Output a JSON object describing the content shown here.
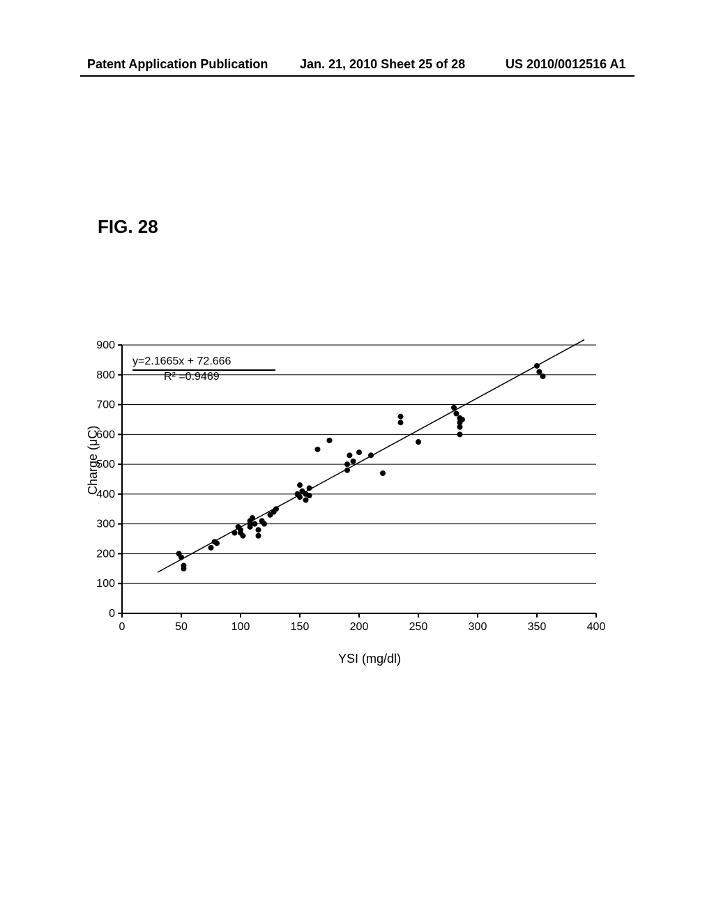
{
  "header": {
    "left": "Patent Application Publication",
    "center": "Jan. 21, 2010  Sheet 25 of 28",
    "right": "US 2010/0012516 A1"
  },
  "figure_label": "FIG.  28",
  "chart": {
    "type": "scatter",
    "xlabel": "YSI  (mg/dl)",
    "ylabel": "Charge  (μC)",
    "xlim": [
      0,
      400
    ],
    "ylim": [
      0,
      900
    ],
    "xtick_step": 50,
    "ytick_step": 100,
    "background_color": "#ffffff",
    "grid_color": "#000000",
    "axis_color": "#000000",
    "marker_color": "#000000",
    "marker_size": 4,
    "line_width": 1.5,
    "label_fontsize": 18,
    "tick_fontsize": 16,
    "equation": "y=2.1665x  +  72.666",
    "rsquared": "R² =0.9469",
    "fit_line": {
      "slope": 2.1665,
      "intercept": 72.666,
      "x0": 30,
      "x1": 390
    },
    "data": [
      [
        48,
        200
      ],
      [
        50,
        188
      ],
      [
        52,
        160
      ],
      [
        52,
        150
      ],
      [
        75,
        220
      ],
      [
        78,
        240
      ],
      [
        80,
        235
      ],
      [
        95,
        270
      ],
      [
        98,
        290
      ],
      [
        100,
        280
      ],
      [
        100,
        270
      ],
      [
        102,
        260
      ],
      [
        108,
        300
      ],
      [
        108,
        310
      ],
      [
        108,
        290
      ],
      [
        110,
        320
      ],
      [
        112,
        300
      ],
      [
        115,
        280
      ],
      [
        115,
        260
      ],
      [
        118,
        310
      ],
      [
        120,
        300
      ],
      [
        125,
        330
      ],
      [
        128,
        340
      ],
      [
        130,
        350
      ],
      [
        148,
        400
      ],
      [
        150,
        430
      ],
      [
        150,
        390
      ],
      [
        152,
        410
      ],
      [
        155,
        380
      ],
      [
        155,
        400
      ],
      [
        158,
        420
      ],
      [
        158,
        395
      ],
      [
        165,
        550
      ],
      [
        175,
        580
      ],
      [
        190,
        500
      ],
      [
        190,
        480
      ],
      [
        192,
        530
      ],
      [
        195,
        510
      ],
      [
        200,
        540
      ],
      [
        210,
        530
      ],
      [
        220,
        470
      ],
      [
        235,
        660
      ],
      [
        235,
        640
      ],
      [
        250,
        575
      ],
      [
        280,
        690
      ],
      [
        282,
        670
      ],
      [
        285,
        600
      ],
      [
        285,
        655
      ],
      [
        285,
        640
      ],
      [
        285,
        625
      ],
      [
        287,
        650
      ],
      [
        350,
        830
      ],
      [
        352,
        810
      ],
      [
        355,
        795
      ]
    ]
  }
}
